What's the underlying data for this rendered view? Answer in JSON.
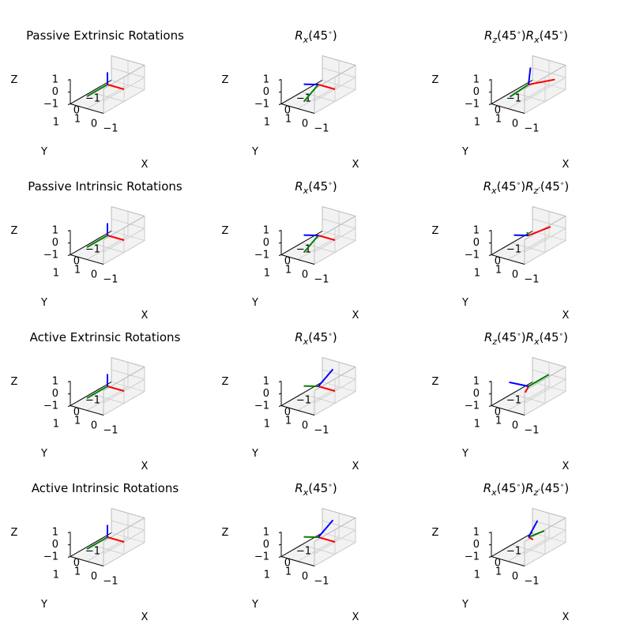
{
  "colors": {
    "x_axis": "#ff0000",
    "y_axis": "#008000",
    "z_axis": "#0000ff",
    "pane": "#f2f2f2"
  },
  "chart_data": [
    {
      "type": "line3d",
      "title": "Passive Extrinsic Rotations",
      "title_tex": false,
      "xlabel": "X",
      "ylabel": "Y",
      "zlabel": "Z",
      "xlim": [
        -1,
        1
      ],
      "ylim": [
        -1,
        1
      ],
      "zlim": [
        -1,
        1
      ],
      "xticks": [
        "−1",
        "0",
        "1"
      ],
      "yticks": [
        "−1",
        "0",
        "1"
      ],
      "zticks": [
        "−1",
        "0",
        "1"
      ],
      "frame": {
        "x": [
          -1,
          0,
          0
        ],
        "y": [
          0,
          1,
          0
        ],
        "z": [
          0,
          0,
          1
        ]
      }
    },
    {
      "type": "line3d",
      "title": "R_x(45^∘)",
      "title_tex": true,
      "xlabel": "X",
      "ylabel": "Y",
      "zlabel": "Z",
      "xlim": [
        -1,
        1
      ],
      "ylim": [
        -1,
        1
      ],
      "zlim": [
        -1,
        1
      ],
      "xticks": [
        "−1",
        "0",
        "1"
      ],
      "yticks": [
        "−1",
        "0",
        "1"
      ],
      "zticks": [
        "−1",
        "0",
        "1"
      ],
      "frame": {
        "x": [
          -1,
          0,
          0
        ],
        "y": [
          0,
          0.71,
          -0.71
        ],
        "z": [
          0,
          0.71,
          0.71
        ]
      }
    },
    {
      "type": "line3d",
      "title": "R_z(45^∘)R_x(45^∘)",
      "title_tex": true,
      "xlabel": "X",
      "ylabel": "Y",
      "zlabel": "Z",
      "xlim": [
        -1,
        1
      ],
      "ylim": [
        -1,
        1
      ],
      "zlim": [
        -1,
        1
      ],
      "xticks": [
        "−1",
        "0",
        "1"
      ],
      "yticks": [
        "−1",
        "0",
        "1"
      ],
      "zticks": [
        "−1",
        "0",
        "1"
      ],
      "frame": {
        "x": [
          -0.71,
          -0.71,
          0
        ],
        "y": [
          0.5,
          0.5,
          -0.71
        ],
        "z": [
          0.5,
          -0.5,
          0.71
        ]
      }
    },
    {
      "type": "line3d",
      "title": "Passive Intrinsic Rotations",
      "title_tex": false,
      "xlabel": "X",
      "ylabel": "Y",
      "zlabel": "Z",
      "xlim": [
        -1,
        1
      ],
      "ylim": [
        -1,
        1
      ],
      "zlim": [
        -1,
        1
      ],
      "xticks": [
        "−1",
        "0",
        "1"
      ],
      "yticks": [
        "−1",
        "0",
        "1"
      ],
      "zticks": [
        "−1",
        "0",
        "1"
      ],
      "frame": {
        "x": [
          -1,
          0,
          0
        ],
        "y": [
          0,
          1,
          0
        ],
        "z": [
          0,
          0,
          1
        ]
      }
    },
    {
      "type": "line3d",
      "title": "R_x(45^∘)",
      "title_tex": true,
      "xlabel": "X",
      "ylabel": "Y",
      "zlabel": "Z",
      "xlim": [
        -1,
        1
      ],
      "ylim": [
        -1,
        1
      ],
      "zlim": [
        -1,
        1
      ],
      "xticks": [
        "−1",
        "0",
        "1"
      ],
      "yticks": [
        "−1",
        "0",
        "1"
      ],
      "zticks": [
        "−1",
        "0",
        "1"
      ],
      "frame": {
        "x": [
          -1,
          0,
          0
        ],
        "y": [
          0,
          0.71,
          -0.71
        ],
        "z": [
          0,
          0.71,
          0.71
        ]
      }
    },
    {
      "type": "line3d",
      "title": "R_x(45^∘)R_{z′}(45^∘)",
      "title_tex": true,
      "xlabel": "X",
      "ylabel": "Y",
      "zlabel": "Z",
      "xlim": [
        -1,
        1
      ],
      "ylim": [
        -1,
        1
      ],
      "zlim": [
        -1,
        1
      ],
      "xticks": [
        "−1",
        "0",
        "1"
      ],
      "yticks": [
        "−1",
        "0",
        "1"
      ],
      "zticks": [
        "−1",
        "0",
        "1"
      ],
      "frame": {
        "x": [
          -0.71,
          -0.5,
          0.5
        ],
        "y": [
          0.71,
          -0.5,
          -0.5
        ],
        "z": [
          0,
          0.71,
          0.71
        ]
      }
    },
    {
      "type": "line3d",
      "title": "Active Extrinsic Rotations",
      "title_tex": false,
      "xlabel": "X",
      "ylabel": "Y",
      "zlabel": "Z",
      "xlim": [
        -1,
        1
      ],
      "ylim": [
        -1,
        1
      ],
      "zlim": [
        -1,
        1
      ],
      "xticks": [
        "−1",
        "0",
        "1"
      ],
      "yticks": [
        "−1",
        "0",
        "1"
      ],
      "zticks": [
        "−1",
        "0",
        "1"
      ],
      "frame": {
        "x": [
          -1,
          0,
          0
        ],
        "y": [
          0,
          1,
          0
        ],
        "z": [
          0,
          0,
          1
        ]
      }
    },
    {
      "type": "line3d",
      "title": "R_x(45^∘)",
      "title_tex": true,
      "xlabel": "X",
      "ylabel": "Y",
      "zlabel": "Z",
      "xlim": [
        -1,
        1
      ],
      "ylim": [
        -1,
        1
      ],
      "zlim": [
        -1,
        1
      ],
      "xticks": [
        "−1",
        "0",
        "1"
      ],
      "yticks": [
        "−1",
        "0",
        "1"
      ],
      "zticks": [
        "−1",
        "0",
        "1"
      ],
      "frame": {
        "x": [
          -1,
          0,
          0
        ],
        "y": [
          0,
          0.71,
          0.71
        ],
        "z": [
          0,
          -0.71,
          0.71
        ]
      }
    },
    {
      "type": "line3d",
      "title": "R_z(45^∘)R_x(45^∘)",
      "title_tex": true,
      "xlabel": "X",
      "ylabel": "Y",
      "zlabel": "Z",
      "xlim": [
        -1,
        1
      ],
      "ylim": [
        -1,
        1
      ],
      "zlim": [
        -1,
        1
      ],
      "xticks": [
        "−1",
        "0",
        "1"
      ],
      "yticks": [
        "−1",
        "0",
        "1"
      ],
      "zticks": [
        "−1",
        "0",
        "1"
      ],
      "frame": {
        "x": [
          -0.3,
          0.4,
          0
        ],
        "y": [
          -0.6,
          -0.5,
          0.7
        ],
        "z": [
          0.55,
          0.5,
          0.6
        ]
      }
    },
    {
      "type": "line3d",
      "title": "Active Intrinsic Rotations",
      "title_tex": false,
      "xlabel": "X",
      "ylabel": "Y",
      "zlabel": "Z",
      "xlim": [
        -1,
        1
      ],
      "ylim": [
        -1,
        1
      ],
      "zlim": [
        -1,
        1
      ],
      "xticks": [
        "−1",
        "0",
        "1"
      ],
      "yticks": [
        "−1",
        "0",
        "1"
      ],
      "zticks": [
        "−1",
        "0",
        "1"
      ],
      "frame": {
        "x": [
          -1,
          0,
          0
        ],
        "y": [
          0,
          1,
          0
        ],
        "z": [
          0,
          0,
          1
        ]
      }
    },
    {
      "type": "line3d",
      "title": "R_x(45^∘)",
      "title_tex": true,
      "xlabel": "X",
      "ylabel": "Y",
      "zlabel": "Z",
      "xlim": [
        -1,
        1
      ],
      "ylim": [
        -1,
        1
      ],
      "zlim": [
        -1,
        1
      ],
      "xticks": [
        "−1",
        "0",
        "1"
      ],
      "yticks": [
        "−1",
        "0",
        "1"
      ],
      "zticks": [
        "−1",
        "0",
        "1"
      ],
      "frame": {
        "x": [
          -1,
          0,
          0
        ],
        "y": [
          0,
          0.71,
          0.71
        ],
        "z": [
          0,
          -0.71,
          0.71
        ]
      }
    },
    {
      "type": "line3d",
      "title": "R_x(45^∘)R_{z′}(45^∘)",
      "title_tex": true,
      "xlabel": "X",
      "ylabel": "Y",
      "zlabel": "Z",
      "xlim": [
        -1,
        1
      ],
      "ylim": [
        -1,
        1
      ],
      "zlim": [
        -1,
        1
      ],
      "xticks": [
        "−1",
        "0",
        "1"
      ],
      "yticks": [
        "−1",
        "0",
        "1"
      ],
      "zticks": [
        "−1",
        "0",
        "1"
      ],
      "frame": {
        "x": [
          -0.4,
          0.1,
          0.05
        ],
        "y": [
          -0.7,
          -0.2,
          0.6
        ],
        "z": [
          0.2,
          -0.6,
          0.7
        ]
      }
    }
  ]
}
